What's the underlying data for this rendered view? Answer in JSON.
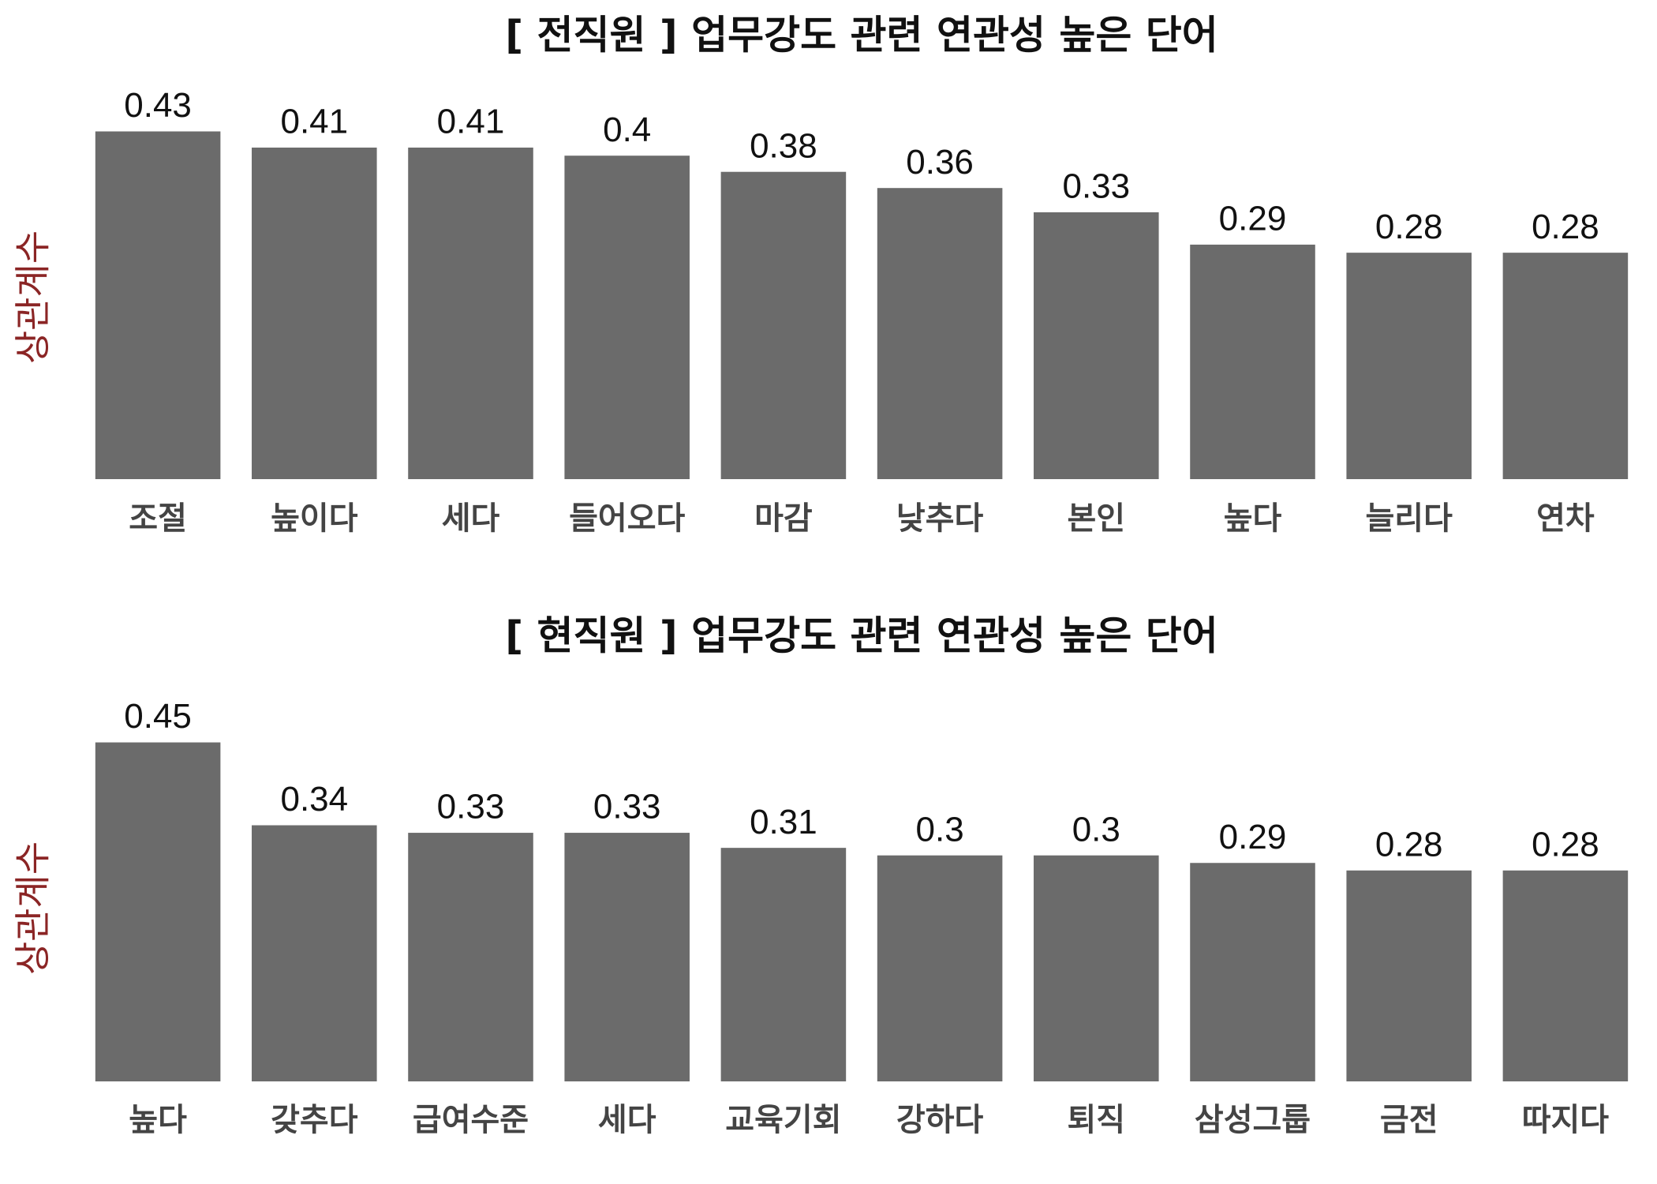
{
  "chart_data": [
    {
      "type": "bar",
      "title": "[ 전직원 ] 업무강도 관련 연관성 높은 단어",
      "y_label": "상관계수",
      "categories": [
        "조절",
        "높이다",
        "세다",
        "들어오다",
        "마감",
        "낮추다",
        "본인",
        "높다",
        "늘리다",
        "연차"
      ],
      "values": [
        0.43,
        0.41,
        0.41,
        0.4,
        0.38,
        0.36,
        0.33,
        0.29,
        0.28,
        0.28
      ],
      "color": "#6b6b6b",
      "ylim": [
        0,
        0.45
      ]
    },
    {
      "type": "bar",
      "title": "[ 현직원 ] 업무강도 관련 연관성 높은 단어",
      "y_label": "상관계수",
      "categories": [
        "높다",
        "갖추다",
        "급여수준",
        "세다",
        "교육기회",
        "강하다",
        "퇴직",
        "삼성그룹",
        "금전",
        "따지다"
      ],
      "values": [
        0.45,
        0.34,
        0.33,
        0.33,
        0.31,
        0.3,
        0.3,
        0.29,
        0.28,
        0.28
      ],
      "color": "#6b6b6b",
      "ylim": [
        0,
        0.46
      ]
    }
  ]
}
